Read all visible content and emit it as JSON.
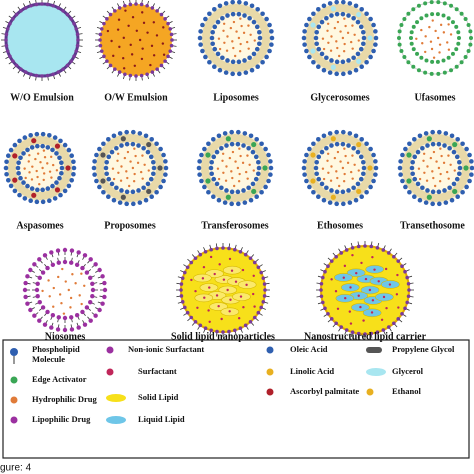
{
  "nodes": [
    {
      "label": "W/O Emulsion"
    },
    {
      "label": "O/W Emulsion"
    },
    {
      "label": "Liposomes"
    },
    {
      "label": "Glycerosomes"
    },
    {
      "label": "Ufasomes"
    },
    {
      "label": "Aspasomes"
    },
    {
      "label": "Proposomes"
    },
    {
      "label": "Transferosomes"
    },
    {
      "label": "Ethosomes"
    },
    {
      "label": "Transethosome"
    },
    {
      "label": "Niosomes"
    },
    {
      "label": "Solid lipid nanoparticles"
    },
    {
      "label": "Nanostructured lipid carrier"
    }
  ],
  "legend": {
    "phospholipid": [
      "Phospholipid",
      "Molecule"
    ],
    "items": [
      "Edge Activator",
      "Hydrophilic Drug",
      "Lipophilic Drug",
      "Non-ionic Surfactant",
      "Surfactant",
      "Solid Lipid",
      "Liquid Lipid",
      "Oleic Acid",
      "Linolic Acid",
      "Ascorbyl palmitate",
      "Propylene Glycol",
      "Glycerol",
      "Ethanol"
    ]
  },
  "footer": "gure: 4"
}
